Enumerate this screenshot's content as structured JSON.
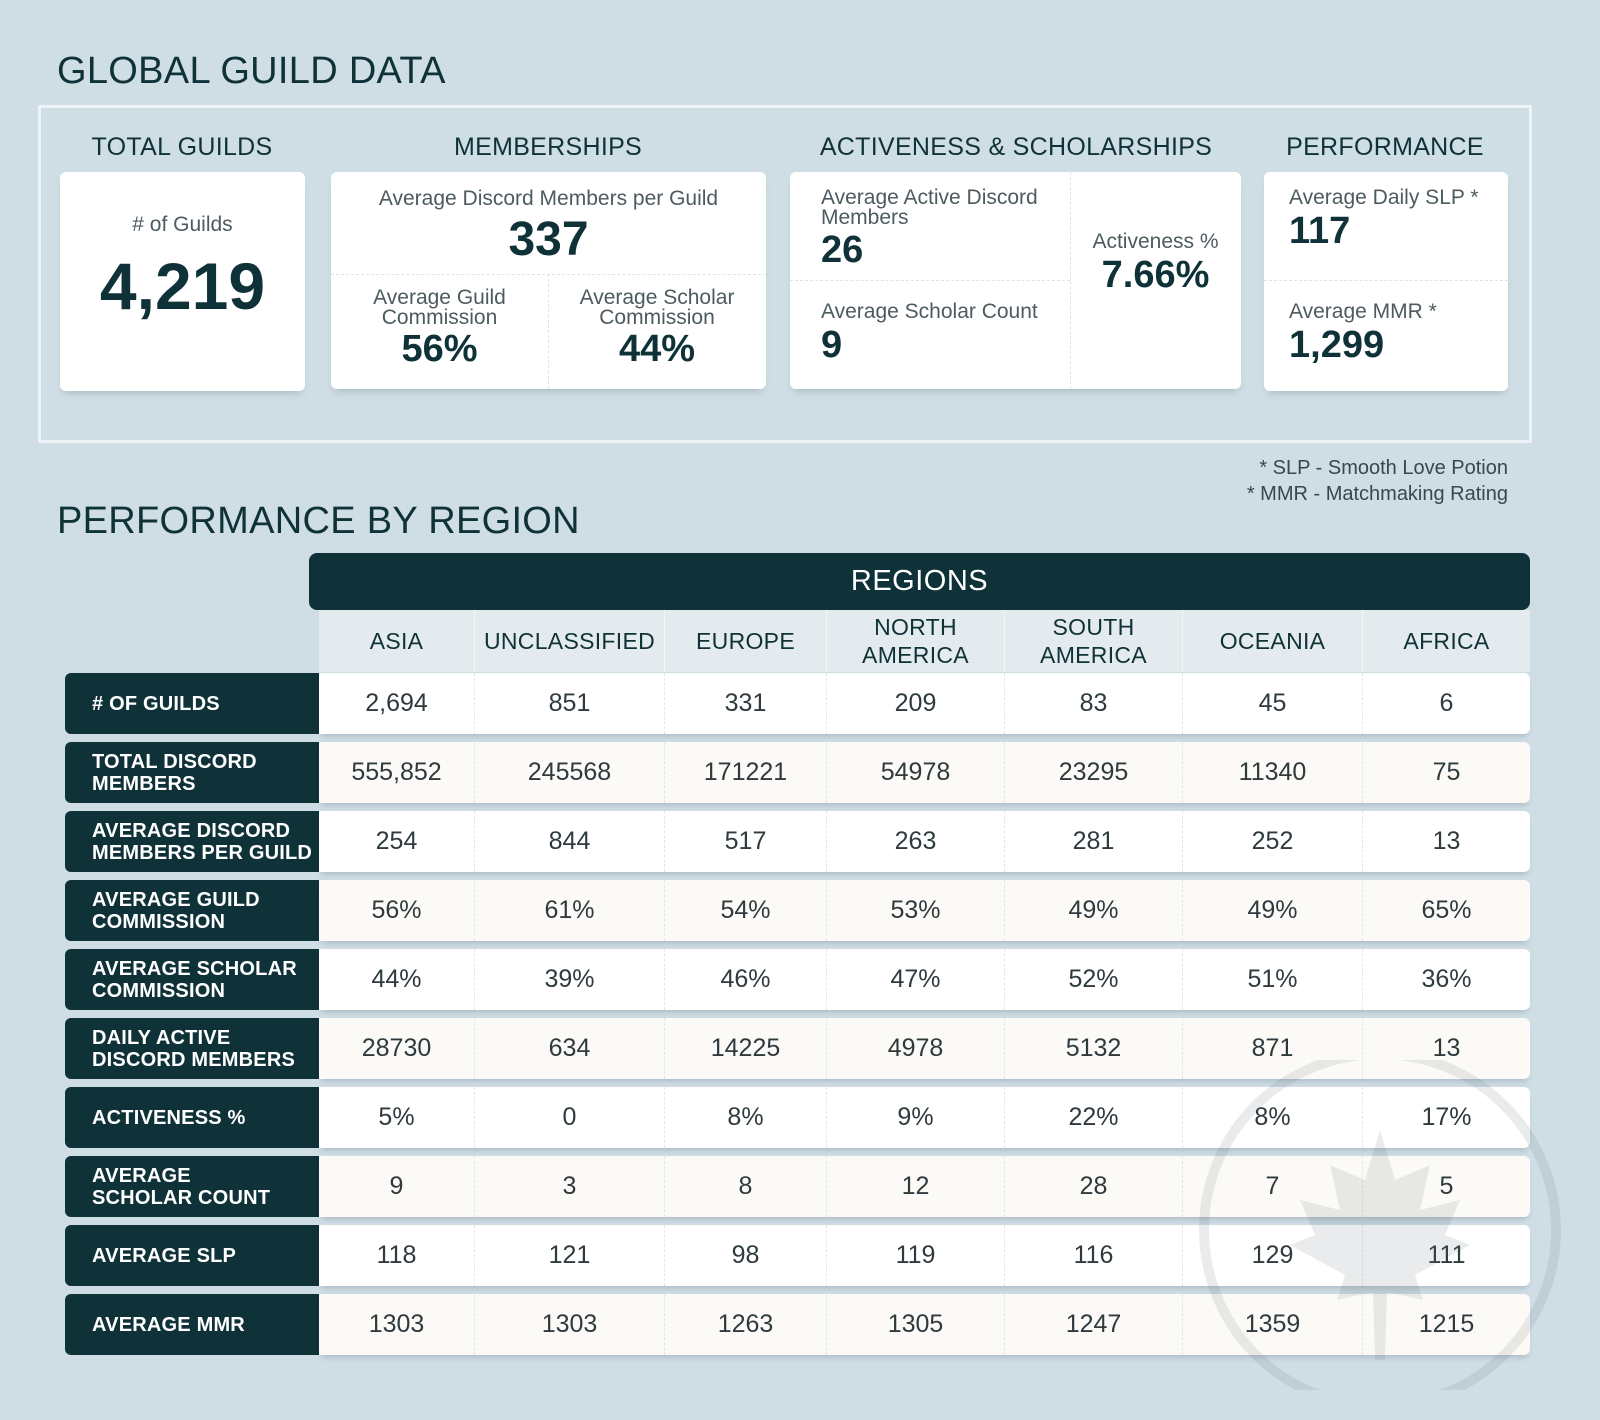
{
  "global": {
    "title": "GLOBAL GUILD DATA",
    "total_guilds": {
      "title": "TOTAL GUILDS",
      "label": "# of Guilds",
      "value": "4,219"
    },
    "memberships": {
      "title": "MEMBERSHIPS",
      "avg_members_label": "Average Discord Members per Guild",
      "avg_members_value": "337",
      "guild_comm_label_1": "Average Guild",
      "guild_comm_label_2": "Commission",
      "guild_comm_value": "56%",
      "scholar_comm_label_1": "Average Scholar",
      "scholar_comm_label_2": "Commission",
      "scholar_comm_value": "44%"
    },
    "activeness": {
      "title": "ACTIVENESS & SCHOLARSHIPS",
      "active_label_1": "Average Active Discord",
      "active_label_2": "Members",
      "active_value": "26",
      "scholar_count_label": "Average Scholar Count",
      "scholar_count_value": "9",
      "activeness_label": "Activeness %",
      "activeness_value": "7.66%"
    },
    "performance": {
      "title": "PERFORMANCE",
      "slp_label": "Average Daily SLP *",
      "slp_value": "117",
      "mmr_label": "Average MMR *",
      "mmr_value": "1,299"
    },
    "notes": [
      "* SLP - Smooth Love Potion",
      "* MMR - Matchmaking Rating"
    ]
  },
  "region": {
    "title": "PERFORMANCE BY REGION",
    "header": "REGIONS",
    "columns": [
      [
        "ASIA"
      ],
      [
        "UNCLASSIFIED"
      ],
      [
        "EUROPE"
      ],
      [
        "NORTH",
        "AMERICA"
      ],
      [
        "SOUTH",
        "AMERICA"
      ],
      [
        "OCEANIA"
      ],
      [
        "AFRICA"
      ]
    ],
    "rows": [
      {
        "label": [
          "# OF GUILDS"
        ],
        "values": [
          "2,694",
          "851",
          "331",
          "209",
          "83",
          "45",
          "6"
        ]
      },
      {
        "label": [
          "TOTAL DISCORD",
          "MEMBERS"
        ],
        "values": [
          "555,852",
          "245568",
          "171221",
          "54978",
          "23295",
          "11340",
          "75"
        ]
      },
      {
        "label": [
          "AVERAGE DISCORD",
          "MEMBERS PER GUILD"
        ],
        "values": [
          "254",
          "844",
          "517",
          "263",
          "281",
          "252",
          "13"
        ]
      },
      {
        "label": [
          "AVERAGE GUILD",
          "COMMISSION"
        ],
        "values": [
          "56%",
          "61%",
          "54%",
          "53%",
          "49%",
          "49%",
          "65%"
        ]
      },
      {
        "label": [
          "AVERAGE SCHOLAR",
          "COMMISSION"
        ],
        "values": [
          "44%",
          "39%",
          "46%",
          "47%",
          "52%",
          "51%",
          "36%"
        ]
      },
      {
        "label": [
          "DAILY ACTIVE",
          "DISCORD MEMBERS"
        ],
        "values": [
          "28730",
          "634",
          "14225",
          "4978",
          "5132",
          "871",
          "13"
        ]
      },
      {
        "label": [
          "ACTIVENESS %"
        ],
        "values": [
          "5%",
          "0",
          "8%",
          "9%",
          "22%",
          "8%",
          "17%"
        ]
      },
      {
        "label": [
          "AVERAGE",
          "SCHOLAR COUNT"
        ],
        "values": [
          "9",
          "3",
          "8",
          "12",
          "28",
          "7",
          "5"
        ]
      },
      {
        "label": [
          "AVERAGE SLP"
        ],
        "values": [
          "118",
          "121",
          "98",
          "119",
          "116",
          "129",
          "111"
        ]
      },
      {
        "label": [
          "AVERAGE MMR"
        ],
        "values": [
          "1303",
          "1303",
          "1263",
          "1305",
          "1247",
          "1359",
          "1215"
        ]
      }
    ]
  },
  "colors": {
    "dark": "#0f3238",
    "bg": "#cfdde4",
    "row_alt": "#fcfaf6",
    "row": "#ffffff"
  }
}
